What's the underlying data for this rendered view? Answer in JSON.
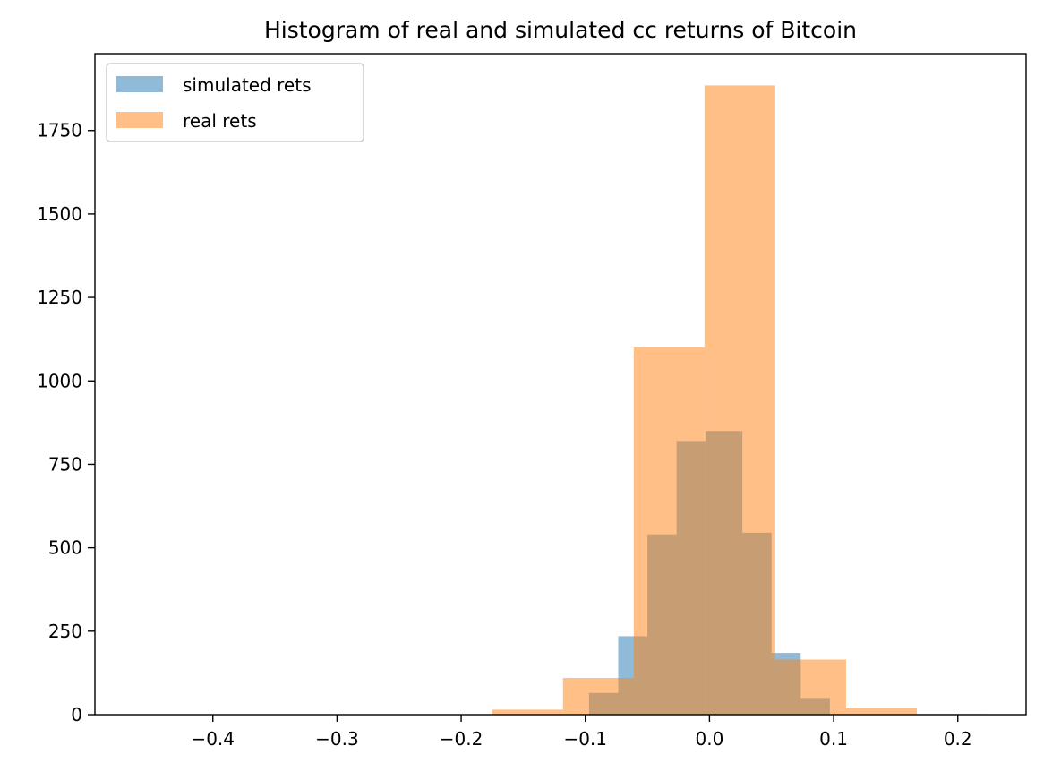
{
  "chart_data": {
    "type": "histogram",
    "title": "Histogram of real and simulated cc returns of Bitcoin",
    "xlabel": "",
    "ylabel": "",
    "xlim": [
      -0.495,
      0.255
    ],
    "ylim": [
      0,
      1980
    ],
    "xticks": [
      -0.4,
      -0.3,
      -0.2,
      -0.1,
      0.0,
      0.1,
      0.2
    ],
    "xtick_labels": [
      "−0.4",
      "−0.3",
      "−0.2",
      "−0.1",
      "0.0",
      "0.1",
      "0.2"
    ],
    "yticks": [
      0,
      250,
      500,
      750,
      1000,
      1250,
      1500,
      1750
    ],
    "ytick_labels": [
      "0",
      "250",
      "500",
      "750",
      "1000",
      "1250",
      "1500",
      "1750"
    ],
    "grid": false,
    "legend_position": "upper-left",
    "series": [
      {
        "name": "simulated rets",
        "color": "#1f77b4",
        "alpha": 0.5,
        "bins": [
          {
            "x0": -0.097,
            "x1": -0.0735,
            "count": 65
          },
          {
            "x0": -0.0735,
            "x1": -0.05,
            "count": 235
          },
          {
            "x0": -0.05,
            "x1": -0.0265,
            "count": 540
          },
          {
            "x0": -0.0265,
            "x1": -0.003,
            "count": 820
          },
          {
            "x0": -0.003,
            "x1": 0.0265,
            "count": 850
          },
          {
            "x0": 0.0265,
            "x1": 0.05,
            "count": 545
          },
          {
            "x0": 0.05,
            "x1": 0.0735,
            "count": 185
          },
          {
            "x0": 0.0735,
            "x1": 0.097,
            "count": 50
          }
        ]
      },
      {
        "name": "real rets",
        "color": "#ff7f0e",
        "alpha": 0.5,
        "bins": [
          {
            "x0": -0.46,
            "x1": -0.403,
            "count": 1
          },
          {
            "x0": -0.403,
            "x1": -0.346,
            "count": 0
          },
          {
            "x0": -0.346,
            "x1": -0.289,
            "count": 0
          },
          {
            "x0": -0.289,
            "x1": -0.232,
            "count": 0
          },
          {
            "x0": -0.232,
            "x1": -0.175,
            "count": 1
          },
          {
            "x0": -0.175,
            "x1": -0.118,
            "count": 15
          },
          {
            "x0": -0.118,
            "x1": -0.061,
            "count": 110
          },
          {
            "x0": -0.061,
            "x1": -0.004,
            "count": 1100
          },
          {
            "x0": -0.004,
            "x1": 0.053,
            "count": 1885
          },
          {
            "x0": 0.053,
            "x1": 0.11,
            "count": 165
          },
          {
            "x0": 0.11,
            "x1": 0.167,
            "count": 20
          },
          {
            "x0": 0.167,
            "x1": 0.224,
            "count": 2
          }
        ]
      }
    ]
  }
}
